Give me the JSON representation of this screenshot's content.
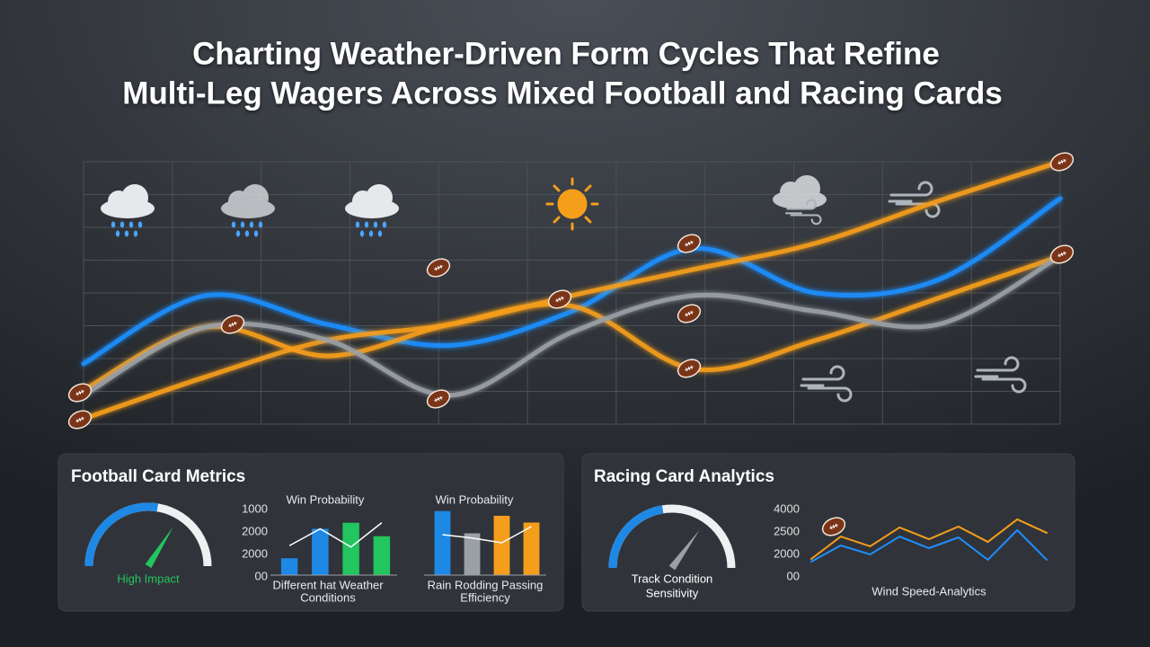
{
  "header": {
    "title": [
      "Charting Weather-Driven Form Cycles That Refine",
      "Multi-Leg Wagers Across Mixed Football and Racing Cards"
    ]
  },
  "panels": {
    "football": "Football Card Metrics",
    "racing": "Racing Card Analytics"
  },
  "chart_data": [
    {
      "type": "line",
      "smooth": true,
      "categories": [
        null,
        null,
        null,
        null,
        null,
        null,
        null,
        null,
        null
      ],
      "ylim": [
        0,
        100
      ],
      "series": [
        {
          "color": "#1e8fff",
          "values": [
            23,
            49,
            38,
            30,
            43,
            67,
            50,
            55,
            86
          ]
        },
        {
          "color": "#f59e1b",
          "values": [
            2,
            18,
            32,
            38,
            49,
            59,
            69,
            85,
            100
          ]
        },
        {
          "color": "#f59e1b",
          "values": [
            13,
            37,
            26,
            38,
            45,
            21,
            32,
            48,
            64
          ]
        },
        {
          "color": "#9aa0a6",
          "values": [
            11,
            37,
            32,
            11,
            35,
            49,
            43,
            38,
            64
          ]
        }
      ]
    },
    {
      "type": "gauge",
      "label": [
        "High Impact"
      ],
      "label_color": "#22c55e",
      "value": 55,
      "needle": 68,
      "ylim": [
        0,
        100
      ],
      "color": "#1e88e5",
      "needle_color": "#22c55e"
    },
    {
      "type": "bar",
      "title": "Win Probability",
      "caption": [
        "Different hat Weather",
        "Conditions"
      ],
      "ylim": [
        0,
        3000
      ],
      "yticks": [
        1000,
        2000,
        2000,
        {
          "value": 0,
          "label": "00"
        }
      ],
      "values": [
        750,
        2060,
        2330,
        1730
      ],
      "colors": [
        "#1e88e5",
        "#1e88e5",
        "#22c55e",
        "#22c55e"
      ],
      "overlay_values": [
        1310,
        2060,
        1250,
        2330
      ],
      "overlay_color": "#ffffff"
    },
    {
      "type": "bar",
      "title": "Win Probability",
      "caption": [
        "Rain Rodding Passing",
        "Efficiency"
      ],
      "ylim": [
        0,
        100
      ],
      "values": [
        95,
        62,
        88,
        78
      ],
      "colors": [
        "#1e88e5",
        "#9aa0a6",
        "#f59e1b",
        "#f59e1b"
      ],
      "overlay_values": [
        60,
        55,
        48,
        72
      ],
      "overlay_color": "#ffffff"
    },
    {
      "type": "gauge",
      "label": [
        "Track Condition",
        "Sensitivity"
      ],
      "label_color": "#ffffff",
      "value": 45,
      "needle": 70,
      "ylim": [
        0,
        100
      ],
      "color": "#1e88e5",
      "needle_color": "#9aa0a6"
    },
    {
      "type": "line",
      "smooth": false,
      "xlabel": "Wind Speed-Analytics",
      "categories": [
        null,
        null,
        null,
        null,
        null,
        null,
        null,
        null,
        null
      ],
      "ylim": [
        0,
        4000
      ],
      "yticks": [
        4000,
        2500,
        2000,
        {
          "value": 0,
          "label": "00"
        }
      ],
      "series": [
        {
          "color": "#f59e1b",
          "values": [
            960,
            2290,
            1710,
            2830,
            2130,
            2880,
            1970,
            3310,
            2510
          ]
        },
        {
          "color": "#1e8fff",
          "values": [
            800,
            1760,
            1230,
            2290,
            1600,
            2240,
            910,
            2670,
            910
          ]
        }
      ]
    }
  ]
}
